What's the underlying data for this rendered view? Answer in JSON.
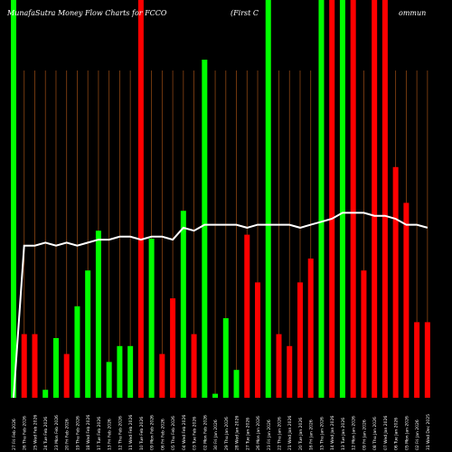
{
  "chart_data": {
    "type": "bar",
    "title_left": "MunafaSutra  Money Flow  Charts for FCCO",
    "title_right": "(First C",
    "title_right_2": "ommun",
    "colors": {
      "background": "#000000",
      "up": "#00ff00",
      "down": "#ff0000",
      "line": "#ffffff",
      "grid": "#8b4513",
      "tick_text": "#ffffff"
    },
    "categories": [
      "Fri 27 Feb 2026",
      "Thu 26 Feb 2026",
      "Wed 25 Feb 2026",
      "Tue 24 Feb 2026",
      "Mon 23 Feb 2026",
      "Fri 20 Feb 2026",
      "Thu 19 Feb 2026",
      "Wed 18 Feb 2026",
      "Tue 17 Feb 2026",
      "Fri 13 Feb 2026",
      "Thu 12 Feb 2026",
      "Wed 11 Feb 2026",
      "Tue 10 Feb 2026",
      "Mon 09 Feb 2026",
      "Fri 06 Feb 2026",
      "Thu 05 Feb 2026",
      "Wed 04 Feb 2026",
      "Tue 03 Feb 2026",
      "Mon 02 Feb 2026",
      "Fri 30 Jan 2026",
      "Thu 29 Jan 2026",
      "Wed 28 Jan 2026",
      "Tue 27 Jan 2026",
      "Mon 26 Jan 2026",
      "Fri 23 Jan 2026",
      "Thu 22 Jan 2026",
      "Wed 21 Jan 2026",
      "Tue 20 Jan 2026",
      "Fri 16 Jan 2026",
      "Thu 15 Jan 2026",
      "Wed 14 Jan 2026",
      "Tue 13 Jan 2026",
      "Mon 12 Jan 2026",
      "Fri 09 Jan 2026",
      "Thu 08 Jan 2026",
      "Wed 07 Jan 2026",
      "Tue 06 Jan 2026",
      "Mon 05 Jan 2026",
      "Fri 02 Jan 2026",
      "Wed 31 Dec 2025"
    ],
    "tick_labels": [
      "27 Fri Feb 2026",
      "26 Thu Feb 2026",
      "25 Wed Feb 2026",
      "24 Tue Feb 2026",
      "23 Mon Feb 2026",
      "20 Fri Feb 2026",
      "19 Thu Feb 2026",
      "18 Wed Feb 2026",
      "17 Tue Feb 2026",
      "13 Fri Feb 2026",
      "12 Thu Feb 2026",
      "11 Wed Feb 2026",
      "10 Tue Feb 2026",
      "09 Mon Feb 2026",
      "06 Fri Feb 2026",
      "05 Thu Feb 2026",
      "04 Wed Feb 2026",
      "03 Tue Feb 2026",
      "02 Mon Feb 2026",
      "30 Fri Jan 2026",
      "29 Thu Jan 2026",
      "28 Wed Jan 2026",
      "27 Tue Jan 2026",
      "26 Mon Jan 2026",
      "23 Fri Jan 2026",
      "22 Thu Jan 2026",
      "21 Wed Jan 2026",
      "20 Tue Jan 2026",
      "16 Fri Jan 2026",
      "15 Thu Jan 2026",
      "14 Wed Jan 2026",
      "13 Tue Jan 2026",
      "12 Mon Jan 2026",
      "09 Fri Jan 2026",
      "08 Thu Jan 2026",
      "07 Wed Jan 2026",
      "06 Tue Jan 2026",
      "05 Mon Jan 2026",
      "02 Fri Jan 2026",
      "31 Wed Dec 2025"
    ],
    "series": [
      {
        "values": [
          100,
          16,
          16,
          2,
          15,
          11,
          23,
          32,
          42,
          9,
          13,
          13,
          100,
          40,
          11,
          25,
          47,
          16,
          85,
          1,
          20,
          7,
          41,
          29,
          100,
          16,
          13,
          29,
          35,
          100,
          100,
          100,
          100,
          32,
          100,
          100,
          58,
          49,
          19,
          19
        ]
      },
      {
        "values": [
          100,
          100,
          100,
          100,
          100,
          100,
          100,
          100,
          100,
          100,
          100,
          100,
          100,
          100,
          100,
          100,
          100,
          100,
          100,
          100,
          100,
          100,
          100,
          100,
          100,
          100,
          100,
          100,
          100,
          100,
          100,
          100,
          100,
          100,
          100,
          100,
          100,
          100,
          100,
          100
        ]
      }
    ],
    "bar_colors": [
      "up",
      "down",
      "down",
      "up",
      "up",
      "down",
      "up",
      "up",
      "up",
      "up",
      "up",
      "up",
      "down",
      "up",
      "down",
      "down",
      "up",
      "down",
      "up",
      "up",
      "up",
      "up",
      "down",
      "down",
      "up",
      "down",
      "down",
      "down",
      "down",
      "up",
      "down",
      "up",
      "down",
      "down",
      "down",
      "down",
      "down",
      "down",
      "down",
      "down"
    ],
    "line_values": [
      0,
      51,
      51,
      52,
      51,
      52,
      51,
      52,
      53,
      53,
      54,
      54,
      53,
      54,
      54,
      53,
      57,
      56,
      58,
      58,
      58,
      58,
      57,
      58,
      58,
      58,
      58,
      57,
      58,
      59,
      60,
      62,
      62,
      62,
      61,
      61,
      60,
      58,
      58,
      57
    ],
    "ylim": [
      0,
      100
    ]
  }
}
